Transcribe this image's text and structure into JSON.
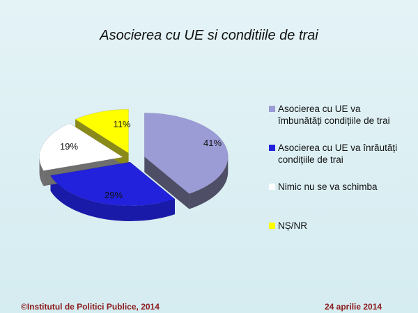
{
  "slide": {
    "title": "Asocierea cu UE si conditiile de trai",
    "footer_left": "©Institutul de Politici Publice, 2014",
    "footer_right": "24 aprilie 2014"
  },
  "chart_data": {
    "type": "pie",
    "title": "Asocierea cu UE si conditiile de trai",
    "exploded": true,
    "three_d": true,
    "legend_position": "right",
    "categories": [
      "Asocierea cu UE va îmbunătăți condițiile de trai",
      "Asocierea cu UE va înrăutăți condițiile de trai",
      "Nimic nu se va schimba",
      "NȘ/NR"
    ],
    "values": [
      41,
      29,
      19,
      11
    ],
    "data_labels": [
      "41%",
      "29%",
      "19%",
      "11%"
    ],
    "colors": [
      "#9b9bd6",
      "#2222dd",
      "#ffffff",
      "#ffff00"
    ],
    "side_colors": [
      "#4e4e66",
      "#1a1aa8",
      "#6e6e6e",
      "#8a8a1a"
    ]
  }
}
